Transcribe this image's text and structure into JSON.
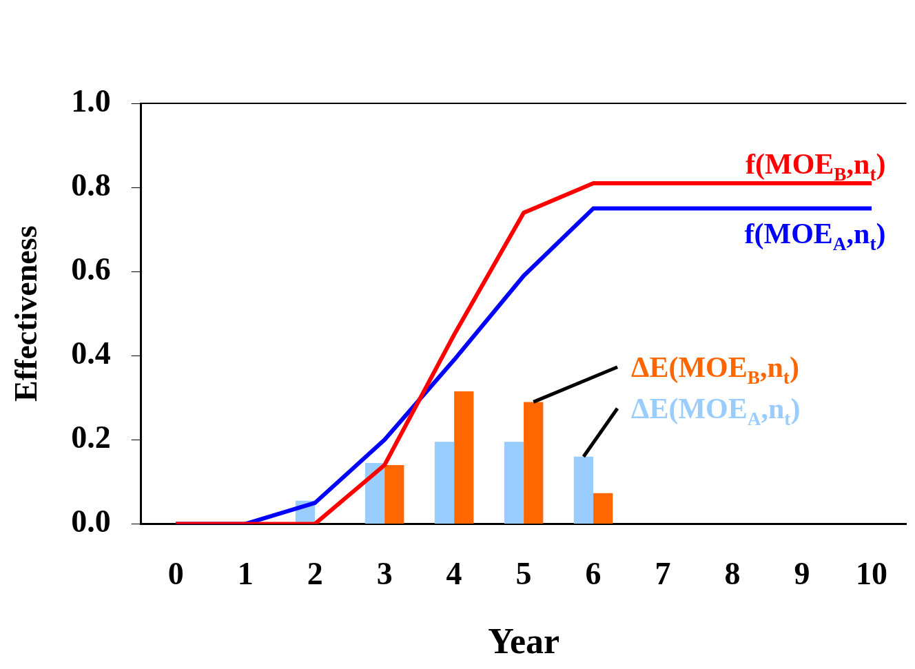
{
  "chart_data": {
    "type": "bar",
    "xlabel": "Year",
    "ylabel": "Effectiveness",
    "categories": [
      "0",
      "1",
      "2",
      "3",
      "4",
      "5",
      "6",
      "7",
      "8",
      "9",
      "10"
    ],
    "series": [
      {
        "name": "ΔE(MOE$_{A}$,n$_{t}$)",
        "color": "#99ccff",
        "values": [
          null,
          null,
          0.055,
          0.145,
          0.195,
          0.195,
          0.16,
          null,
          null,
          null,
          null
        ]
      },
      {
        "name": "ΔE(MOE$_{B}$,n$_{t}$)",
        "color": "#ff6600",
        "values": [
          null,
          null,
          0,
          0.14,
          0.315,
          0.29,
          0.073,
          null,
          null,
          null,
          null
        ]
      },
      {
        "type": "line",
        "name": "f(MOE$_{B}$,n$_{t}$)",
        "color": "#ff0000",
        "values": [
          0,
          0,
          0,
          0.14,
          0.45,
          0.74,
          0.81,
          0.81,
          0.81,
          0.81,
          0.81
        ]
      },
      {
        "type": "line",
        "name": "f(MOE$_{A}$,n$_{t}$)",
        "color": "#0000ff",
        "values": [
          0,
          0,
          0.05,
          0.2,
          0.39,
          0.59,
          0.75,
          0.75,
          0.75,
          0.75,
          0.75
        ]
      }
    ],
    "ylim": [
      0,
      1
    ],
    "yticks": [
      {
        "value": 0,
        "label": "0.0"
      },
      {
        "value": 0.2,
        "label": "0.2"
      },
      {
        "value": 0.4,
        "label": "0.4"
      },
      {
        "value": 0.6,
        "label": "0.6"
      },
      {
        "value": 0.8,
        "label": "0.8"
      },
      {
        "value": 1,
        "label": "1.0"
      }
    ],
    "grid": false,
    "legend": false,
    "line_style": "solid",
    "marker": "none"
  }
}
